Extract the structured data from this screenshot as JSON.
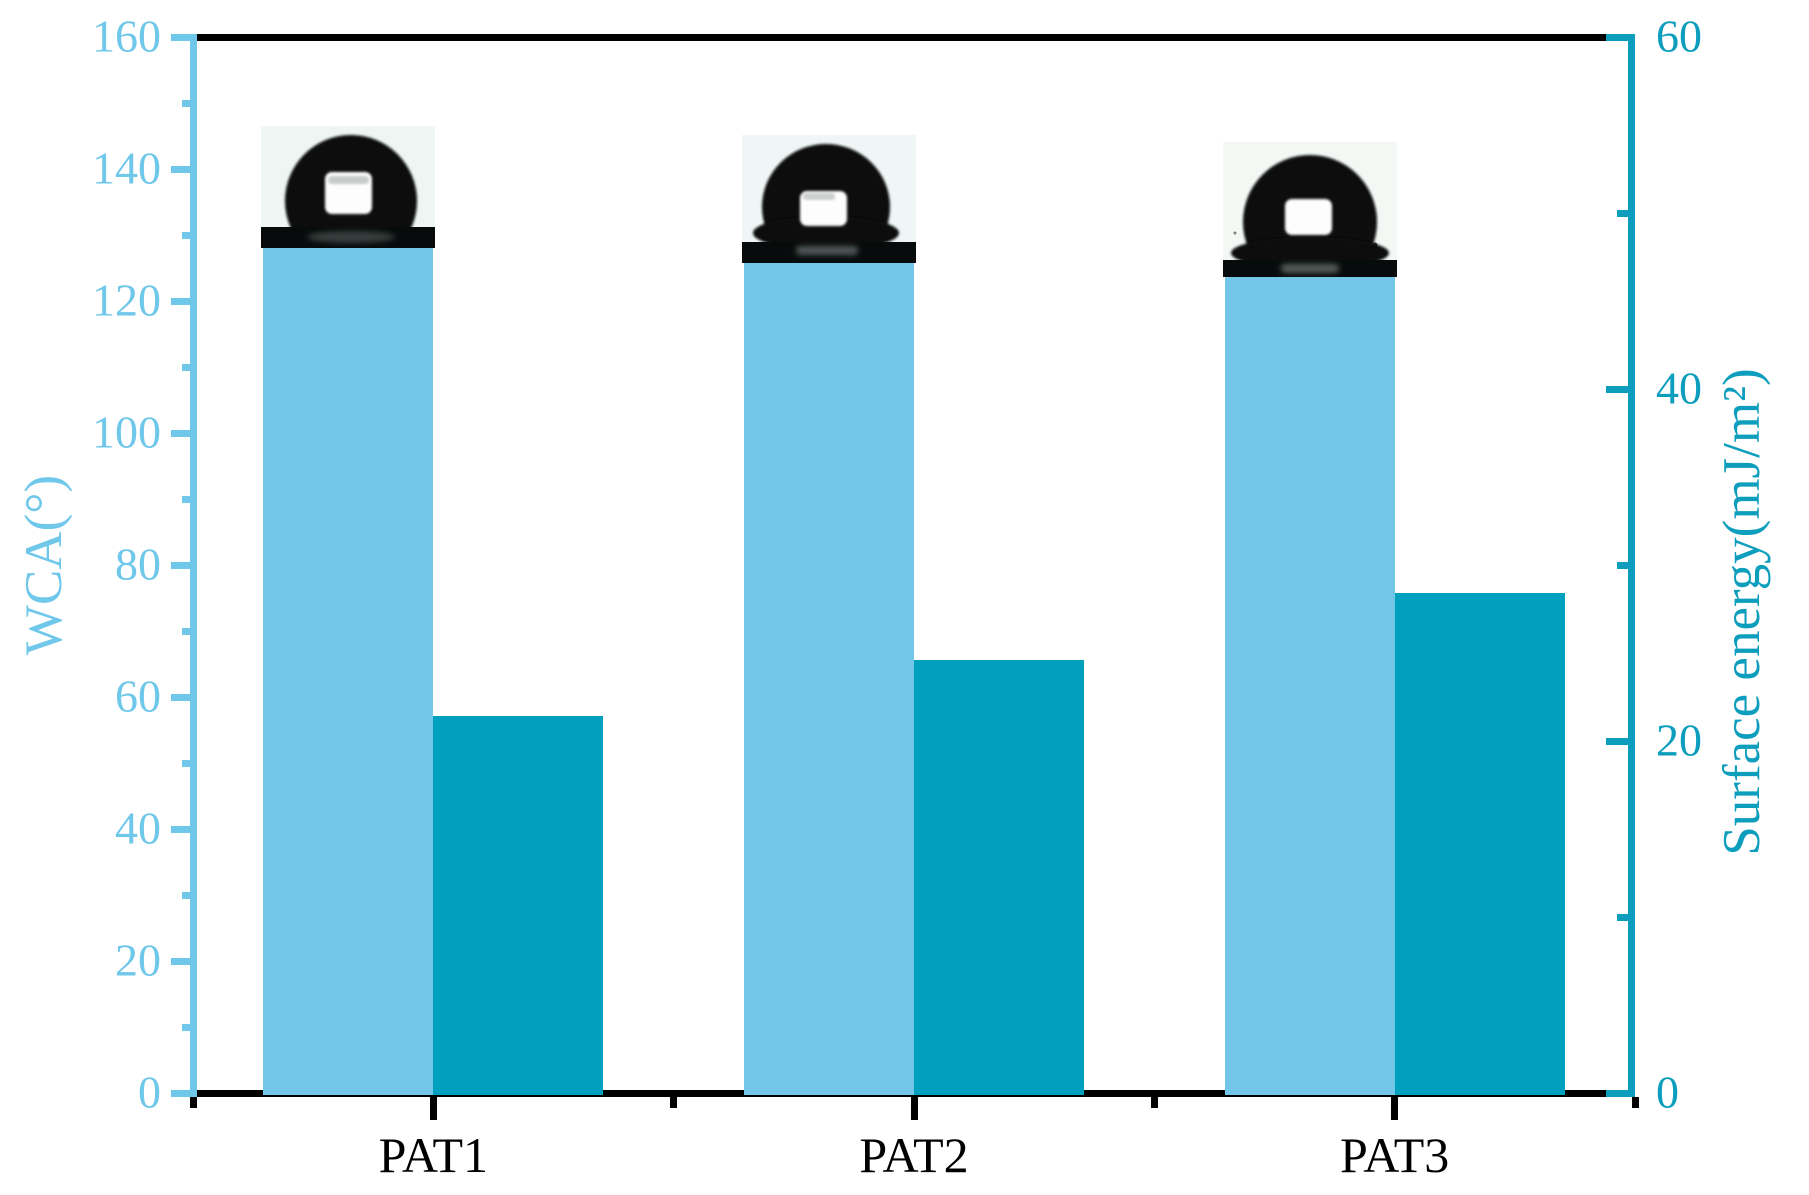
{
  "chart_data": {
    "type": "bar",
    "title": "",
    "categories": [
      "PAT1",
      "PAT2",
      "PAT3"
    ],
    "series": [
      {
        "name": "WCA",
        "axis": "left",
        "color": "#72C7E8",
        "values": [
          128.0,
          125.7,
          123.6
        ],
        "unit": "°"
      },
      {
        "name": "Surface energy",
        "axis": "right",
        "color": "#00A0BE",
        "values": [
          21.4,
          24.6,
          28.4
        ],
        "unit": "mJ/m²"
      }
    ],
    "left_axis": {
      "label": "WCA(°)",
      "min": 0,
      "max": 160,
      "major_step": 20,
      "minor_step": 10,
      "tick_labels": [
        "0",
        "20",
        "40",
        "60",
        "80",
        "100",
        "120",
        "140",
        "160"
      ],
      "color": "#6FC7EA"
    },
    "right_axis": {
      "label": "Surface energy(mJ/m²)",
      "min": 0,
      "max": 60,
      "major_step": 20,
      "minor_step": 10,
      "tick_labels": [
        "0",
        "20",
        "40",
        "60"
      ],
      "color": "#0D9EBD",
      "position": "right"
    },
    "x_axis": {
      "tick_labels": [
        "PAT1",
        "PAT2",
        "PAT3"
      ],
      "color": "#000000"
    },
    "legend": "none",
    "grid": "off",
    "layout_hint": "grouped bars, light-blue WCA bar left of category center, teal surface-energy bar right of center",
    "insets": [
      {
        "category": "PAT1",
        "description": "water contact angle droplet photograph above WCA bar"
      },
      {
        "category": "PAT2",
        "description": "water contact angle droplet photograph above WCA bar"
      },
      {
        "category": "PAT3",
        "description": "water contact angle droplet photograph above WCA bar"
      }
    ]
  }
}
